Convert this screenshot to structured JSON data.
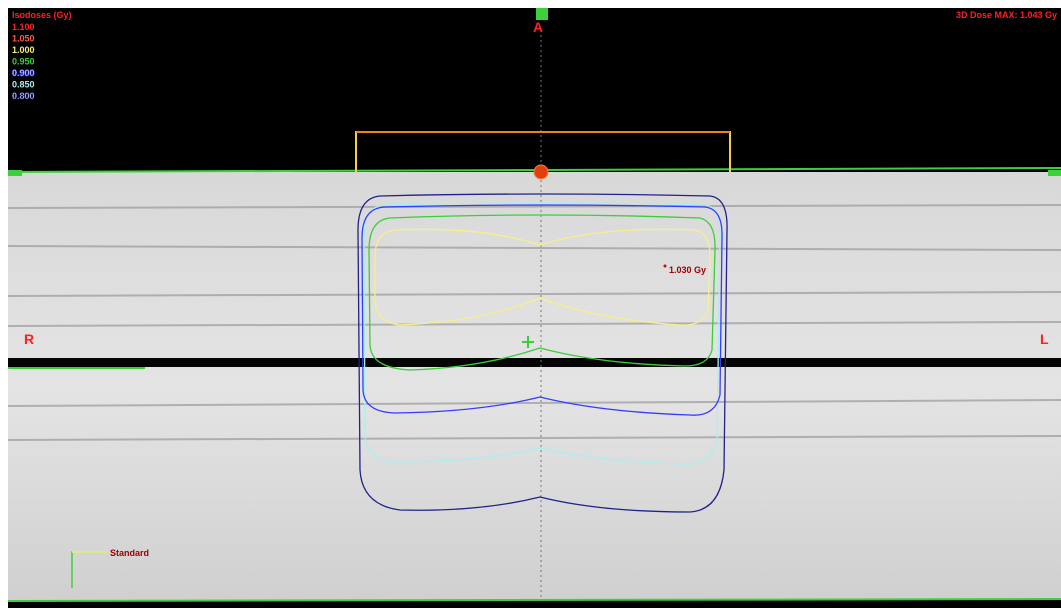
{
  "legend": {
    "title": "Isodoses (Gy)",
    "levels": [
      {
        "label": "1.100",
        "color": "#ff2020"
      },
      {
        "label": "1.050",
        "color": "#ff5a3a"
      },
      {
        "label": "1.000",
        "color": "#f5f08a"
      },
      {
        "label": "0.950",
        "color": "#3ccd3c"
      },
      {
        "label": "0.900",
        "color": "#3a3aff"
      },
      {
        "label": "0.850",
        "color": "#a8f0f0"
      },
      {
        "label": "0.800",
        "color": "#22228a"
      }
    ]
  },
  "dose_max": "3D Dose MAX: 1.043 Gy",
  "orientation": {
    "top": "A",
    "left": "R",
    "right": "L"
  },
  "point_label": "1.030 Gy",
  "scale_label": "Standard"
}
